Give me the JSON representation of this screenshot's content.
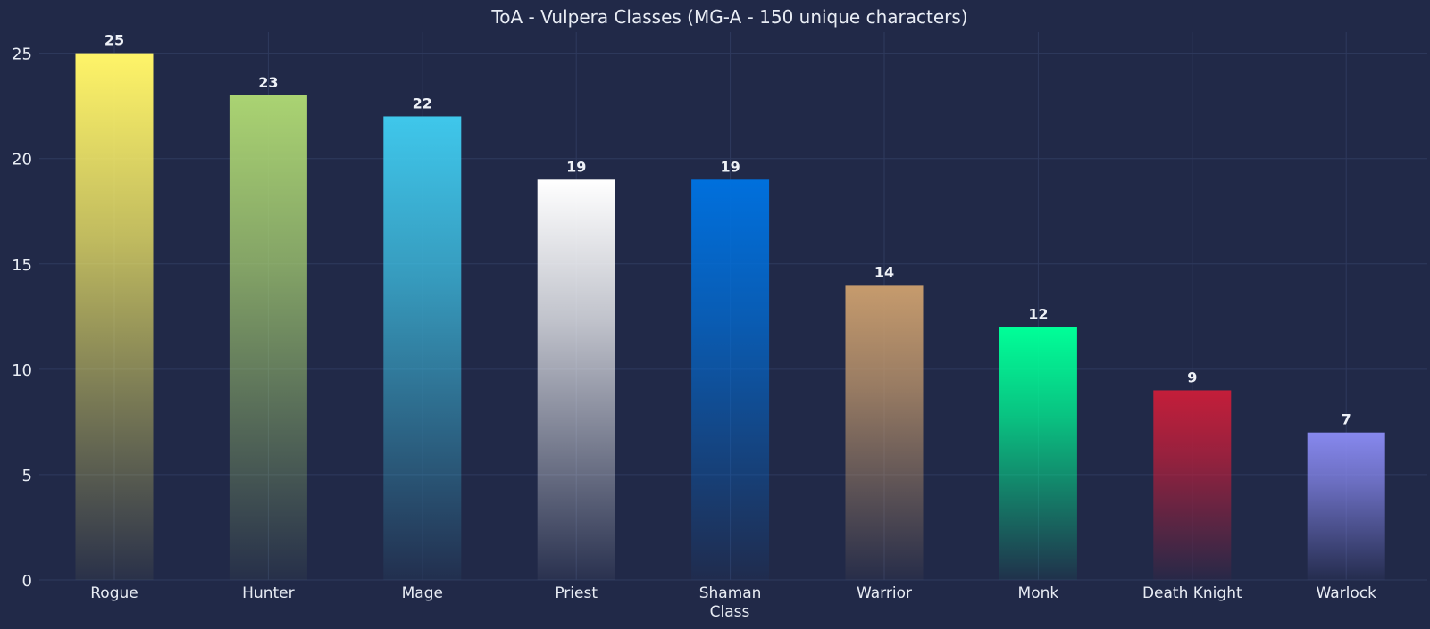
{
  "chart_data": {
    "type": "bar",
    "title": "ToA - Vulpera Classes (MG-A - 150 unique characters)",
    "xlabel": "Class",
    "ylabel": "",
    "ylim": [
      0,
      26
    ],
    "yticks": [
      0,
      5,
      10,
      15,
      20,
      25
    ],
    "grid": true,
    "categories": [
      "Rogue",
      "Hunter",
      "Mage",
      "Priest",
      "Shaman",
      "Warrior",
      "Monk",
      "Death Knight",
      "Warlock"
    ],
    "values": [
      25,
      23,
      22,
      19,
      19,
      14,
      12,
      9,
      7
    ],
    "colors": [
      "#FFF468",
      "#AAD372",
      "#3FC7EB",
      "#FFFFFF",
      "#0070DD",
      "#C69B6D",
      "#00FF98",
      "#C41E3A",
      "#8788EE"
    ],
    "background": "#212948"
  }
}
